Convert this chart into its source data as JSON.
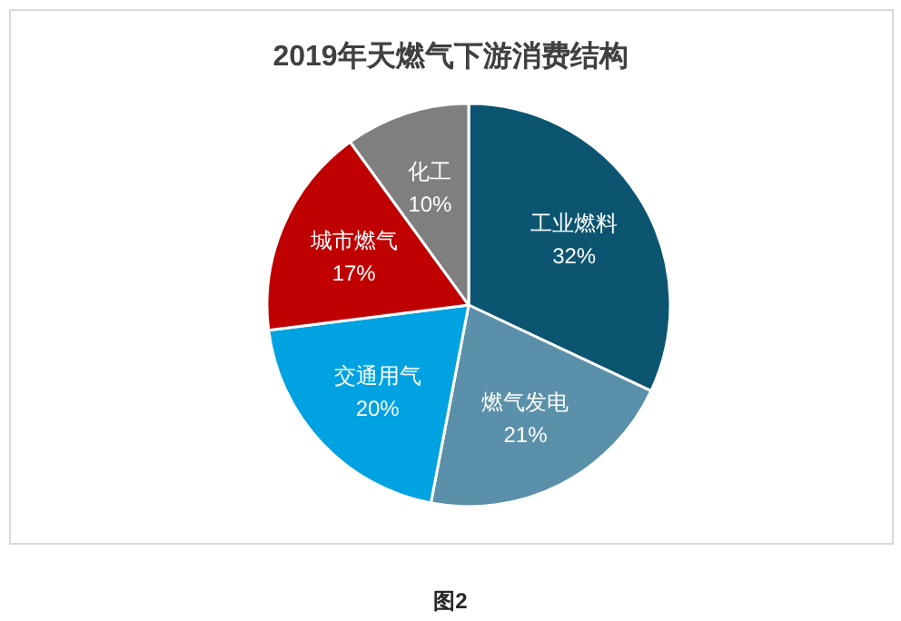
{
  "chart_data": {
    "type": "pie",
    "title": "2019年天燃气下游消费结构",
    "categories": [
      "工业燃料",
      "燃气发电",
      "交通用气",
      "城市燃气",
      "化工"
    ],
    "values": [
      32,
      21,
      20,
      17,
      10
    ],
    "colors": [
      "#0c5571",
      "#5a90a9",
      "#00a2e1",
      "#c00000",
      "#7f7f7f"
    ],
    "value_labels": [
      "32%",
      "21%",
      "20%",
      "17%",
      "10%"
    ],
    "annotations": [
      "图2"
    ]
  }
}
